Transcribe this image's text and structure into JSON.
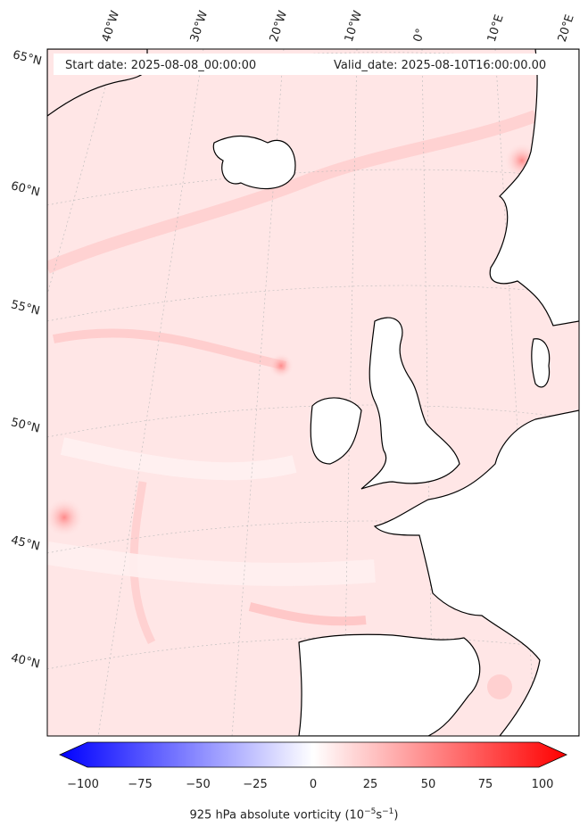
{
  "header": {
    "start": "Start date: 2025-08-08_00:00:00",
    "valid": "Valid_date: 2025-08-10T16:00:00.00"
  },
  "lon_labels": [
    "40°W",
    "30°W",
    "20°W",
    "10°W",
    "0°",
    "10°E",
    "20°E"
  ],
  "lat_labels": [
    "65°N",
    "60°N",
    "55°N",
    "50°N",
    "45°N",
    "40°N"
  ],
  "colorbar": {
    "ticks": [
      "−100",
      "−75",
      "−50",
      "−25",
      "0",
      "25",
      "50",
      "75",
      "100"
    ],
    "title": "925 hPa absolute vorticity (10",
    "title_exp": "−5",
    "title_mid": "s",
    "title_exp2": "−1",
    "title_end": ")",
    "range": [
      -100,
      100
    ],
    "colors": {
      "neg": "#0000ff",
      "mid": "#ffffff",
      "pos": "#ff0000"
    }
  },
  "map": {
    "land_color": "#ffffff",
    "coast_color": "#000000",
    "sea_tint": "#ffe4e4"
  }
}
